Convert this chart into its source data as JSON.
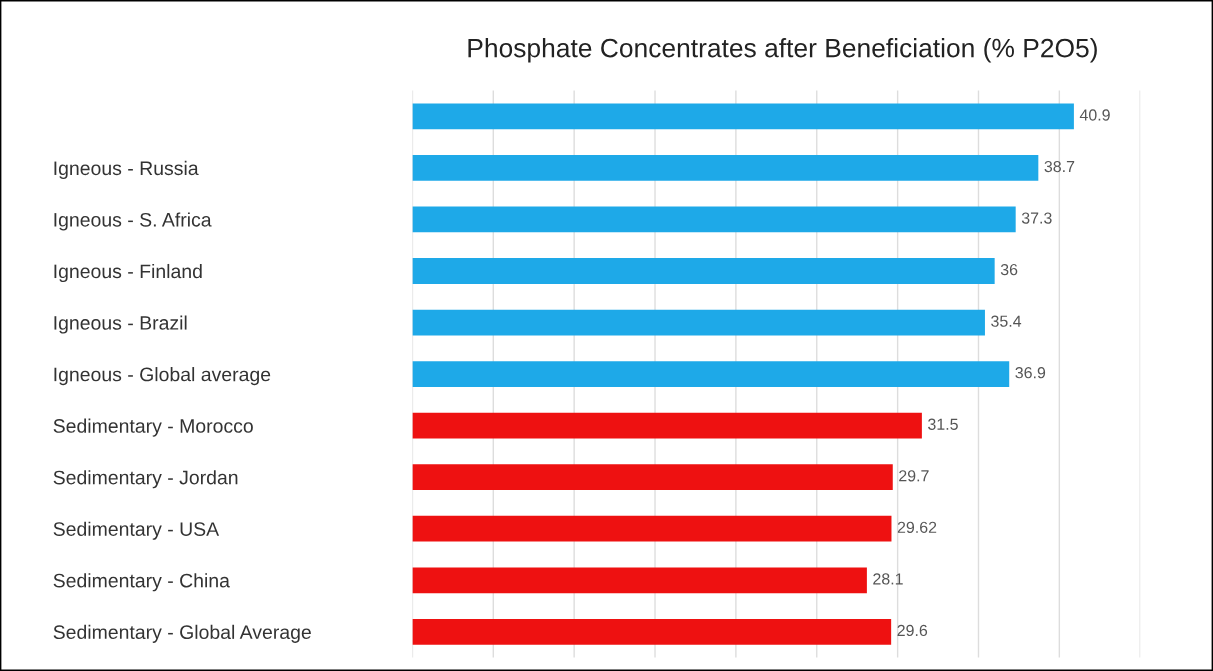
{
  "chart_data": {
    "type": "bar",
    "orientation": "horizontal",
    "title": "Phosphate Concentrates after Beneficiation (% P2O5)",
    "categories": [
      null,
      "Igneous - Russia",
      "Igneous - S. Africa",
      "Igneous - Finland",
      "Igneous - Brazil",
      "Igneous - Global average",
      "Sedimentary - Morocco",
      "Sedimentary - Jordan",
      "Sedimentary - USA",
      "Sedimentary - China",
      "Sedimentary - Global Average"
    ],
    "values": [
      40.9,
      38.7,
      37.3,
      36,
      35.4,
      36.9,
      31.5,
      29.7,
      29.62,
      28.1,
      29.6
    ],
    "colors": [
      "#1ea9e8",
      "#1ea9e8",
      "#1ea9e8",
      "#1ea9e8",
      "#1ea9e8",
      "#1ea9e8",
      "#ee1111",
      "#ee1111",
      "#ee1111",
      "#ee1111",
      "#ee1111"
    ],
    "data_labels": true,
    "xlim": [
      0,
      45
    ],
    "xticks": [
      {
        "value": 0,
        "label": null
      },
      {
        "value": 5,
        "label": null
      },
      {
        "value": 10,
        "label": null
      },
      {
        "value": 15,
        "label": null
      },
      {
        "value": 20,
        "label": null
      },
      {
        "value": 25,
        "label": null
      },
      {
        "value": 30,
        "label": null
      },
      {
        "value": 35,
        "label": null
      },
      {
        "value": 40,
        "label": null
      },
      {
        "value": 45,
        "label": null
      }
    ],
    "tick_labels": "y",
    "grid": "x"
  }
}
